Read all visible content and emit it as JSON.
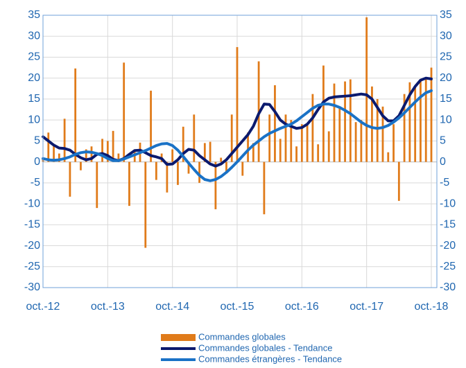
{
  "chart_data": {
    "type": "bar_line",
    "categories": [
      "oct.-12",
      null,
      null,
      null,
      null,
      null,
      null,
      null,
      null,
      null,
      null,
      null,
      "oct.-13",
      null,
      null,
      null,
      null,
      null,
      null,
      null,
      null,
      null,
      null,
      null,
      "oct.-14",
      null,
      null,
      null,
      null,
      null,
      null,
      null,
      null,
      null,
      null,
      null,
      "oct.-15",
      null,
      null,
      null,
      null,
      null,
      null,
      null,
      null,
      null,
      null,
      null,
      "oct.-16",
      null,
      null,
      null,
      null,
      null,
      null,
      null,
      null,
      null,
      null,
      null,
      "oct.-17",
      null,
      null,
      null,
      null,
      null,
      null,
      null,
      null,
      null,
      null,
      null,
      "oct.-18"
    ],
    "series": [
      {
        "name": "Commandes globales",
        "type": "bar",
        "color": "#e07b1a",
        "values": [
          1,
          7,
          4,
          2,
          10.3,
          -8.3,
          22.3,
          -2,
          3,
          3.7,
          -11,
          5.5,
          5,
          7.4,
          2,
          23.7,
          -10.5,
          3,
          4.6,
          -20.5,
          17,
          -4.3,
          2,
          -7.3,
          3,
          -5.5,
          8.4,
          -2.8,
          11.3,
          -5,
          4.5,
          4.8,
          -11.3,
          1,
          -2.5,
          11.3,
          27.4,
          -3.3,
          7,
          4.5,
          24,
          -12.5,
          11.3,
          18.3,
          5.5,
          11.3,
          10,
          3.7,
          9,
          8.7,
          16.2,
          4.2,
          23,
          7.3,
          18.7,
          13,
          19.2,
          19.7,
          9.5,
          10,
          34.5,
          18,
          15,
          13.2,
          2.3,
          9,
          -9.3,
          16.2,
          19,
          18,
          19.5,
          20,
          22.5
        ]
      },
      {
        "name": "Commandes globales - Tendance",
        "type": "line",
        "color": "#0b1a6e",
        "values": [
          6,
          5,
          4,
          3.3,
          3.2,
          2.8,
          1.8,
          1,
          0.5,
          0.8,
          1.8,
          2,
          1.5,
          0.6,
          0.3,
          0.8,
          1.8,
          2.7,
          2.8,
          2.2,
          1.5,
          1.2,
          0.8,
          -0.6,
          -0.5,
          0.5,
          2,
          3,
          2.8,
          1.5,
          0.5,
          -0.5,
          -1,
          -0.5,
          0.5,
          2,
          3.5,
          5,
          6.5,
          8.5,
          11.5,
          13.8,
          13.7,
          12,
          10,
          9,
          8.5,
          8,
          8.2,
          9,
          10.5,
          12.5,
          14.3,
          15.2,
          15.5,
          15.6,
          15.7,
          15.8,
          16,
          16.2,
          16,
          15,
          13,
          11,
          9.8,
          9.8,
          11,
          13.5,
          16,
          18,
          19.5,
          20,
          19.8
        ]
      },
      {
        "name": "Commandes étrangères - Tendance",
        "type": "line",
        "color": "#1a72c6",
        "values": [
          0.8,
          0.5,
          0.4,
          0.5,
          0.8,
          1.2,
          1.8,
          2.2,
          2.4,
          2.3,
          2,
          1.5,
          0.8,
          0.3,
          0.3,
          0.7,
          1.2,
          1.7,
          2.2,
          2.7,
          3.3,
          3.9,
          4.3,
          4.4,
          3.9,
          2.8,
          1.3,
          -0.3,
          -1.8,
          -3.2,
          -4.2,
          -4.5,
          -4.2,
          -3.5,
          -2.5,
          -1.3,
          0,
          1.4,
          2.8,
          4,
          5,
          6,
          6.8,
          7.4,
          8,
          8.5,
          9,
          9.8,
          10.8,
          11.8,
          12.8,
          13.5,
          13.8,
          13.8,
          13.5,
          13,
          12.3,
          11.5,
          10.5,
          9.5,
          8.7,
          8.2,
          8,
          8.2,
          8.7,
          9.5,
          10.5,
          11.7,
          13,
          14.3,
          15.5,
          16.5,
          17
        ]
      }
    ],
    "ylim": [
      -30,
      35
    ],
    "yticks": [
      -30,
      -25,
      -20,
      -15,
      -10,
      -5,
      0,
      5,
      10,
      15,
      20,
      25,
      30,
      35
    ],
    "y2lim": [
      -30,
      35
    ],
    "y2ticks": [
      -30,
      -25,
      -20,
      -15,
      -10,
      -5,
      0,
      5,
      10,
      15,
      20,
      25,
      30,
      35
    ],
    "grid": true,
    "legend": "bottom"
  }
}
